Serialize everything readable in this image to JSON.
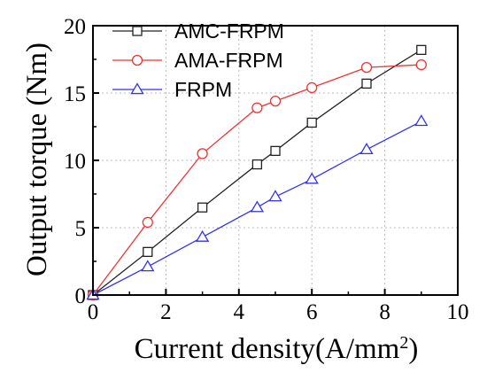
{
  "chart_data": {
    "type": "line",
    "xlabel": "Current density",
    "xlabel_unit": "A/mm",
    "xlabel_unit_sup": "2",
    "ylabel": "Output torque",
    "ylabel_unit": "Nm",
    "xlim": [
      0,
      10
    ],
    "ylim": [
      0,
      20
    ],
    "xticks": [
      "0",
      "2",
      "4",
      "6",
      "8",
      "10"
    ],
    "yticks": [
      "0",
      "5",
      "10",
      "15",
      "20"
    ],
    "grid": true,
    "legend_position": "top-left",
    "series": [
      {
        "name": "AMC-FRPM",
        "color": "#222222",
        "marker": "square",
        "points": [
          [
            0,
            0
          ],
          [
            1.5,
            3.2
          ],
          [
            3,
            6.5
          ],
          [
            4.5,
            9.7
          ],
          [
            5,
            10.7
          ],
          [
            6,
            12.8
          ],
          [
            7.5,
            15.7
          ],
          [
            9,
            18.2
          ]
        ]
      },
      {
        "name": "AMA-FRPM",
        "color": "#ee3333",
        "marker": "circle",
        "points": [
          [
            0,
            0
          ],
          [
            1.5,
            5.4
          ],
          [
            3,
            10.5
          ],
          [
            4.5,
            13.9
          ],
          [
            5,
            14.4
          ],
          [
            6,
            15.4
          ],
          [
            7.5,
            16.9
          ],
          [
            9,
            17.1
          ]
        ]
      },
      {
        "name": "FRPM",
        "color": "#3333ee",
        "marker": "triangle",
        "points": [
          [
            0,
            0
          ],
          [
            1.5,
            2.1
          ],
          [
            3,
            4.3
          ],
          [
            4.5,
            6.5
          ],
          [
            5,
            7.3
          ],
          [
            6,
            8.6
          ],
          [
            7.5,
            10.8
          ],
          [
            9,
            12.9
          ]
        ]
      }
    ]
  }
}
